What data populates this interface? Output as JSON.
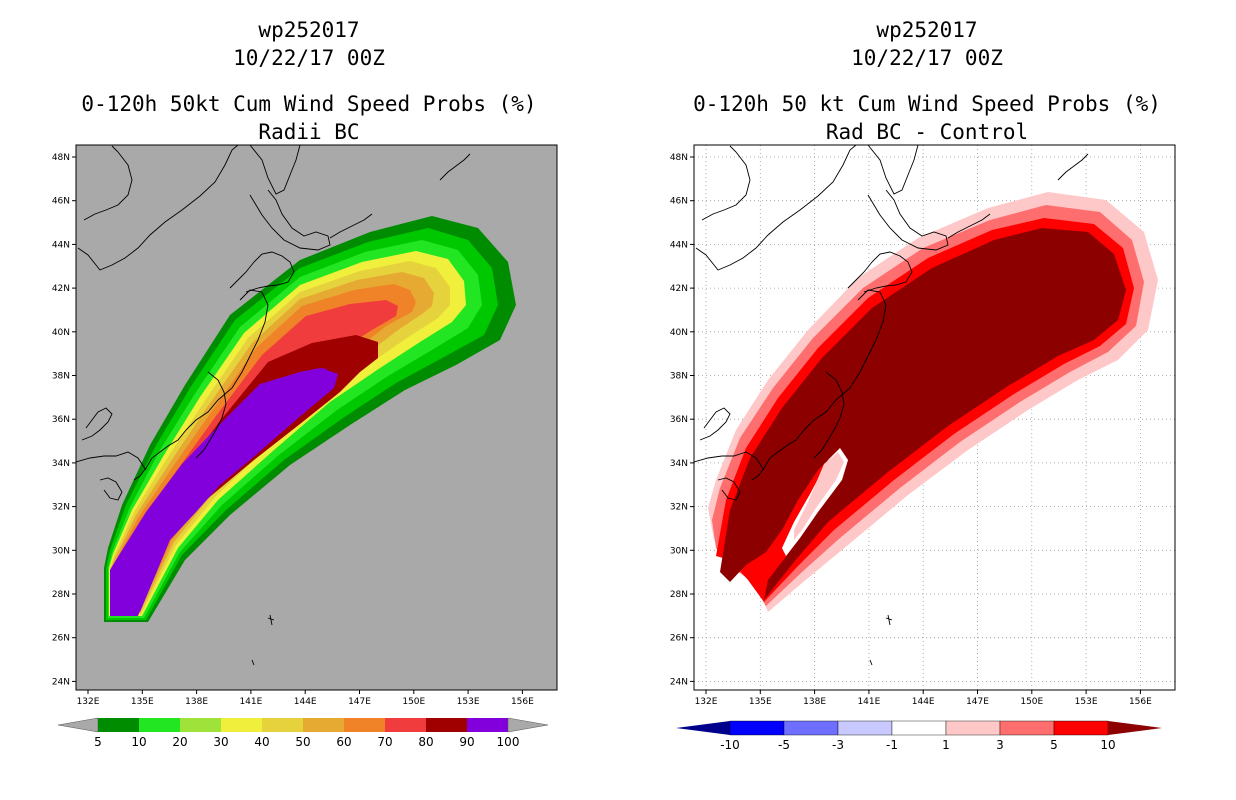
{
  "left_panel": {
    "storm_id": "wp252017",
    "datetime": "10/22/17 00Z",
    "title": "0-120h 50kt Cum Wind Speed Probs (%)",
    "subtitle": "Radii BC",
    "colorbar": {
      "labels": [
        "5",
        "10",
        "20",
        "30",
        "40",
        "50",
        "60",
        "70",
        "80",
        "90",
        "100"
      ],
      "colors": [
        "#008c00",
        "#00c800",
        "#22e622",
        "#9ee23a",
        "#f0f03c",
        "#e6d23c",
        "#e6aa32",
        "#f08228",
        "#f03c3c",
        "#a00000",
        "#8200dc"
      ]
    }
  },
  "right_panel": {
    "storm_id": "wp252017",
    "datetime": "10/22/17 00Z",
    "title": "0-120h 50 kt Cum Wind Speed Probs (%)",
    "subtitle": "Rad BC - Control",
    "colorbar": {
      "labels": [
        "-10",
        "-5",
        "-3",
        "-1",
        "1",
        "3",
        "5",
        "10"
      ],
      "colors": [
        "#00008c",
        "#0000ff",
        "#6e6eff",
        "#c8c8ff",
        "#ffffff",
        "#ffc8c8",
        "#ff6e6e",
        "#ff0000",
        "#8c0000"
      ]
    }
  },
  "axes": {
    "lon_labels": [
      "132E",
      "135E",
      "138E",
      "141E",
      "144E",
      "147E",
      "150E",
      "153E",
      "156E"
    ],
    "lat_labels": [
      "48N",
      "46N",
      "44N",
      "42N",
      "40N",
      "38N",
      "36N",
      "34N",
      "32N",
      "30N",
      "28N",
      "26N",
      "24N"
    ]
  },
  "colors": {
    "land_ocean_background_left": "#a9a9a9",
    "background_right": "#ffffff",
    "coastline": "#000000"
  }
}
